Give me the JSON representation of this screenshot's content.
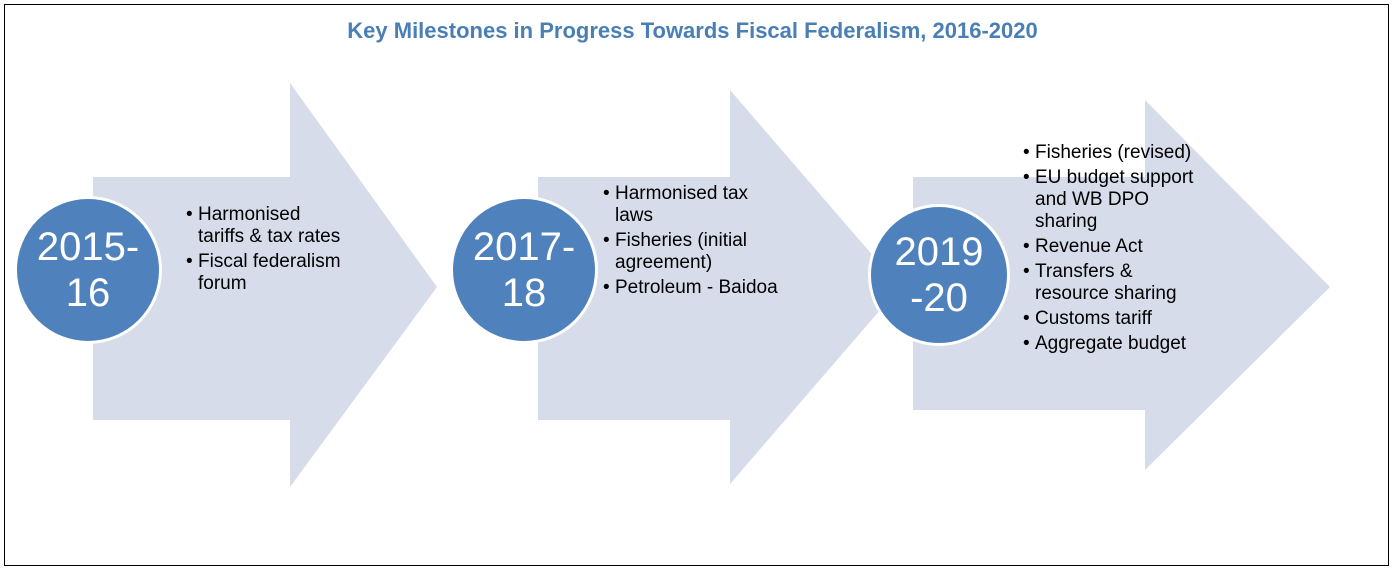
{
  "title": "Key Milestones in Progress Towards Fiscal Federalism, 2016-2020",
  "colors": {
    "title": "#4a7fb5",
    "arrow": "#d6dcea",
    "circle": "#4f81bd",
    "border": "#000000"
  },
  "stages": [
    {
      "period": "2015-\n16",
      "items": [
        "Harmonised tariffs & tax rates",
        "Fiscal federalism forum"
      ]
    },
    {
      "period": "2017-\n18",
      "items": [
        "Harmonised tax laws",
        "Fisheries (initial agreement)",
        "Petroleum - Baidoa"
      ]
    },
    {
      "period": "2019\n-20",
      "items": [
        "Fisheries (revised)",
        "EU budget support and WB DPO sharing",
        "Revenue Act",
        "Transfers & resource sharing",
        "Customs tariff",
        "Aggregate budget"
      ]
    }
  ]
}
